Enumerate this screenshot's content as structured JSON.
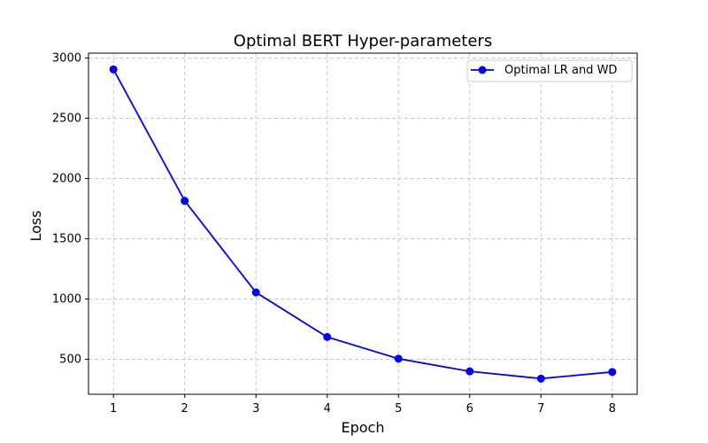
{
  "chart_data": {
    "type": "line",
    "title": "Optimal BERT Hyper-parameters",
    "xlabel": "Epoch",
    "ylabel": "Loss",
    "x": [
      1,
      2,
      3,
      4,
      5,
      6,
      7,
      8
    ],
    "series": [
      {
        "name": "Optimal LR and WD",
        "values": [
          2905,
          1815,
          1055,
          685,
          505,
          400,
          340,
          395
        ],
        "color": "#0000ff",
        "marker": "circle"
      }
    ],
    "xlim": [
      0.65,
      8.35
    ],
    "ylim": [
      210,
      3040
    ],
    "x_ticks": [
      1,
      2,
      3,
      4,
      5,
      6,
      7,
      8
    ],
    "y_ticks": [
      500,
      1000,
      1500,
      2000,
      2500,
      3000
    ],
    "x_tick_labels": [
      "1",
      "2",
      "3",
      "4",
      "5",
      "6",
      "7",
      "8"
    ],
    "y_tick_labels": [
      "500",
      "1000",
      "1500",
      "2000",
      "2500",
      "3000"
    ],
    "grid": true,
    "grid_style": "dashed",
    "legend_position": "top-right"
  }
}
